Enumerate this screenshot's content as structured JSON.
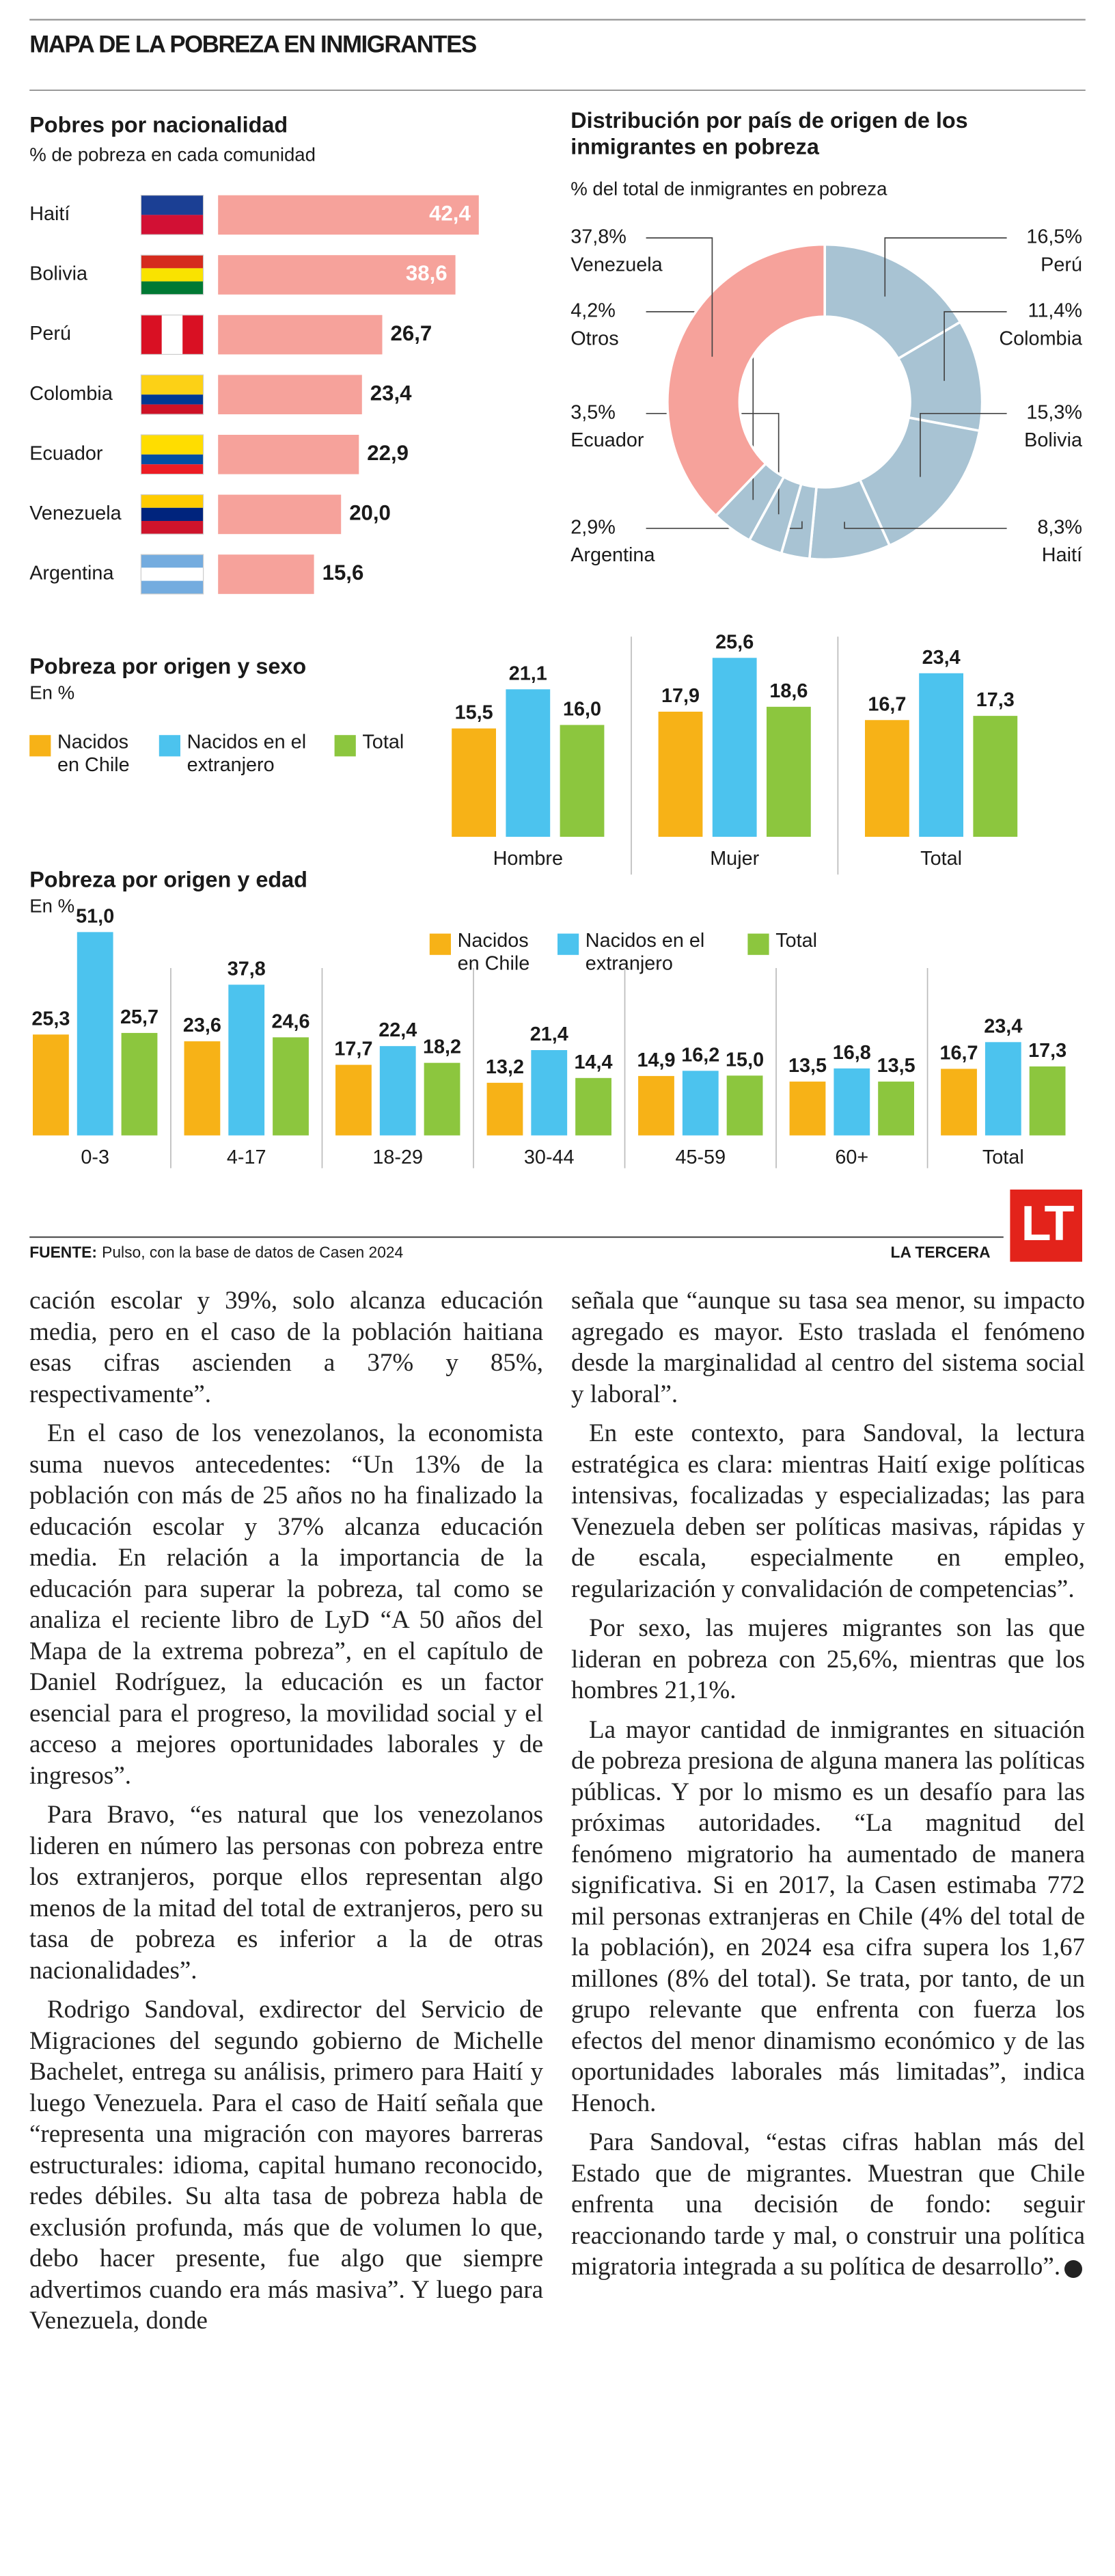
{
  "header": {
    "title": "MAPA DE LA POBREZA EN INMIGRANTES"
  },
  "chart_data": [
    {
      "type": "bar",
      "orientation": "horizontal",
      "title": "Pobres por nacionalidad",
      "subtitle": "% de pobreza en cada comunidad",
      "categories": [
        "Haití",
        "Bolivia",
        "Perú",
        "Colombia",
        "Ecuador",
        "Venezuela",
        "Argentina"
      ],
      "values": [
        42.4,
        38.6,
        26.7,
        23.4,
        22.9,
        20.0,
        15.6
      ],
      "value_labels": [
        "42,4",
        "38,6",
        "26,7",
        "23,4",
        "22,9",
        "20,0",
        "15,6"
      ],
      "color": "#f6a29b"
    },
    {
      "type": "pie",
      "title": "Distribución por país de origen de los inmigrantes en pobreza",
      "subtitle": "% del total de inmigrantes en pobreza",
      "categories": [
        "Perú",
        "Colombia",
        "Bolivia",
        "Haití",
        "Argentina",
        "Ecuador",
        "Otros",
        "Venezuela"
      ],
      "values": [
        16.5,
        11.4,
        15.3,
        8.3,
        2.9,
        3.5,
        4.2,
        37.8
      ],
      "value_labels": [
        "16,5%",
        "11,4%",
        "15,3%",
        "8,3%",
        "2,9%",
        "3,5%",
        "4,2%",
        "37,8%"
      ],
      "colors": [
        "#a8c3d3",
        "#a8c3d3",
        "#a8c3d3",
        "#a8c3d3",
        "#a8c3d3",
        "#a8c3d3",
        "#a8c3d3",
        "#f6a29b"
      ]
    },
    {
      "type": "bar",
      "title": "Pobreza por origen y sexo",
      "subtitle": "En %",
      "categories": [
        "Hombre",
        "Mujer",
        "Total"
      ],
      "series": [
        {
          "name": "Nacidos en Chile",
          "color": "#f7b217",
          "values": [
            15.5,
            17.9,
            16.7
          ],
          "value_labels": [
            "15,5",
            "17,9",
            "16,7"
          ]
        },
        {
          "name": "Nacidos en el extranjero",
          "color": "#4cc3ee",
          "values": [
            21.1,
            25.6,
            23.4
          ],
          "value_labels": [
            "21,1",
            "25,6",
            "23,4"
          ]
        },
        {
          "name": "Total",
          "color": "#8cc63e",
          "values": [
            16.0,
            18.6,
            17.3
          ],
          "value_labels": [
            "16,0",
            "18,6",
            "17,3"
          ]
        }
      ]
    },
    {
      "type": "bar",
      "title": "Pobreza por origen y edad",
      "subtitle": "En %",
      "categories": [
        "0-3",
        "4-17",
        "18-29",
        "30-44",
        "45-59",
        "60+",
        "Total"
      ],
      "series": [
        {
          "name": "Nacidos en Chile",
          "color": "#f7b217",
          "values": [
            25.3,
            23.6,
            17.7,
            13.2,
            14.9,
            13.5,
            16.7
          ],
          "value_labels": [
            "25,3",
            "23,6",
            "17,7",
            "13,2",
            "14,9",
            "13,5",
            "16,7"
          ]
        },
        {
          "name": "Nacidos en el extranjero",
          "color": "#4cc3ee",
          "values": [
            51.0,
            37.8,
            22.4,
            21.4,
            16.2,
            16.8,
            23.4
          ],
          "value_labels": [
            "51,0",
            "37,8",
            "22,4",
            "21,4",
            "16,2",
            "16,8",
            "23,4"
          ]
        },
        {
          "name": "Total",
          "color": "#8cc63e",
          "values": [
            25.7,
            24.6,
            18.2,
            14.4,
            15.0,
            13.5,
            17.3
          ],
          "value_labels": [
            "25,7",
            "24,6",
            "18,2",
            "14,4",
            "15,0",
            "13,5",
            "17,3"
          ]
        }
      ]
    }
  ],
  "footer": {
    "source_label": "FUENTE:",
    "source": "Pulso, con la base de datos de Casen 2024",
    "brand": "LA TERCERA",
    "logo": "LT"
  },
  "article": {
    "left": [
      "cación escolar y 39%, solo alcanza educación media, pero en el caso de la población haitiana esas cifras ascienden a 37% y 85%, respectivamente”.",
      "En el caso de los venezolanos, la economista suma nuevos antecedentes: “Un 13% de la población con más de 25 años no ha finalizado la educación escolar y 37% alcanza educación media. En relación a la importancia de la educación para superar la pobreza, tal como se analiza el reciente libro de LyD “A 50 años del Mapa de la extrema pobreza”, en el capítulo de Daniel Rodríguez, la educación es un factor esencial para el progreso, la movilidad social y el acceso a mejores oportunidades laborales y de ingresos”.",
      "Para Bravo, “es natural que los venezolanos lideren en número las personas con pobreza entre los extranjeros, porque ellos representan algo menos de la mitad del total de extranjeros, pero su tasa de pobreza es inferior a la de otras nacionalidades”.",
      "Rodrigo Sandoval, exdirector del Servicio de Migraciones del segundo gobierno de Michelle Bachelet, entrega su análisis, primero para Haití y luego Venezuela. Para el caso de Haití señala que “representa una migración con mayores barreras estructurales: idioma, capital humano reconocido, redes débiles. Su alta tasa de pobreza habla de exclusión profunda, más que de volumen lo que, debo hacer presente, fue algo que siempre advertimos cuando era más masiva”. Y luego para Venezuela, donde"
    ],
    "right": [
      "señala que “aunque su tasa sea menor, su impacto agregado es mayor. Esto traslada el fenómeno desde la marginalidad al centro del sistema social y laboral”.",
      "En este contexto, para Sandoval, la lectura estratégica es clara: mientras Haití exige políticas intensivas, focalizadas y especializadas; las para Venezuela deben ser políticas masivas, rápidas y de escala, especialmente en empleo, regularización y convalidación de competencias”.",
      "Por sexo, las mujeres migrantes son las que lideran en pobreza con 25,6%, mientras que los hombres 21,1%.",
      "La mayor cantidad de inmigrantes en situación de pobreza presiona de alguna manera las políticas públicas. Y por lo mismo es un desafío para las próximas autoridades. “La magnitud del fenómeno migratorio ha aumentado de manera significativa. Si en 2017, la Casen estimaba 772 mil personas extranjeras en Chile (4% del total de la población), en 2024 esa cifra supera los 1,67 millones (8% del total). Se trata, por tanto, de un grupo relevante que enfrenta con fuerza los efectos del menor dinamismo económico y de las oportunidades laborales más limitadas”, indica Henoch.",
      "Para Sandoval, “estas cifras hablan más del Estado que de migrantes. Muestran que Chile enfrenta una decisión de fondo: seguir reaccionando tarde y mal, o construir una política migratoria integrada a su política de desarrollo”."
    ]
  }
}
